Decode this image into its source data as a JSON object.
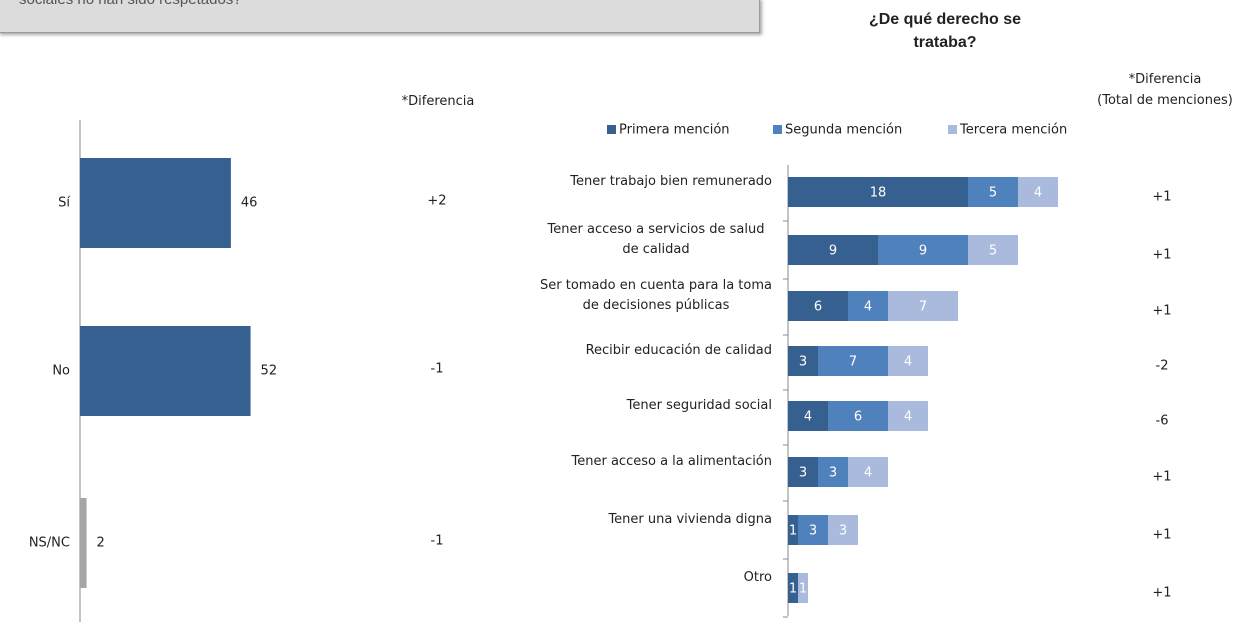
{
  "header": {
    "question": "sociales no han sido respetados?"
  },
  "chart_data": [
    {
      "type": "bar",
      "orientation": "horizontal",
      "categories": [
        "Sí",
        "No",
        "NS/NC"
      ],
      "values": [
        46,
        52,
        2
      ],
      "colors": [
        "#36608f",
        "#36608f",
        "#a6a6a6"
      ],
      "diff_header": "*Diferencia",
      "differences": [
        "+2",
        "-1",
        "-1"
      ]
    },
    {
      "type": "stacked_bar",
      "orientation": "horizontal",
      "title": "¿De qué derecho se trataba?",
      "categories": [
        "Tener trabajo bien remunerado",
        "Tener acceso a servicios de salud de calidad",
        "Ser tomado en cuenta para la toma de decisiones públicas",
        "Recibir educación de calidad",
        "Tener seguridad social",
        "Tener acceso a la alimentación",
        "Tener una vivienda digna",
        "Otro"
      ],
      "series": [
        {
          "name": "Primera mención",
          "color": "#36608f",
          "values": [
            18,
            9,
            6,
            3,
            4,
            3,
            1,
            1
          ]
        },
        {
          "name": "Segunda mención",
          "color": "#4f81bd",
          "values": [
            5,
            9,
            4,
            7,
            6,
            3,
            3,
            null
          ]
        },
        {
          "name": "Tercera mención",
          "color": "#a9badc",
          "values": [
            4,
            5,
            7,
            4,
            4,
            4,
            3,
            1
          ]
        }
      ],
      "legend": "top",
      "diff_header": [
        "*Diferencia",
        "(Total de menciones)"
      ],
      "differences": [
        "+1",
        "+1",
        "+1",
        "-2",
        "-6",
        "+1",
        "+1",
        "+1"
      ]
    }
  ]
}
